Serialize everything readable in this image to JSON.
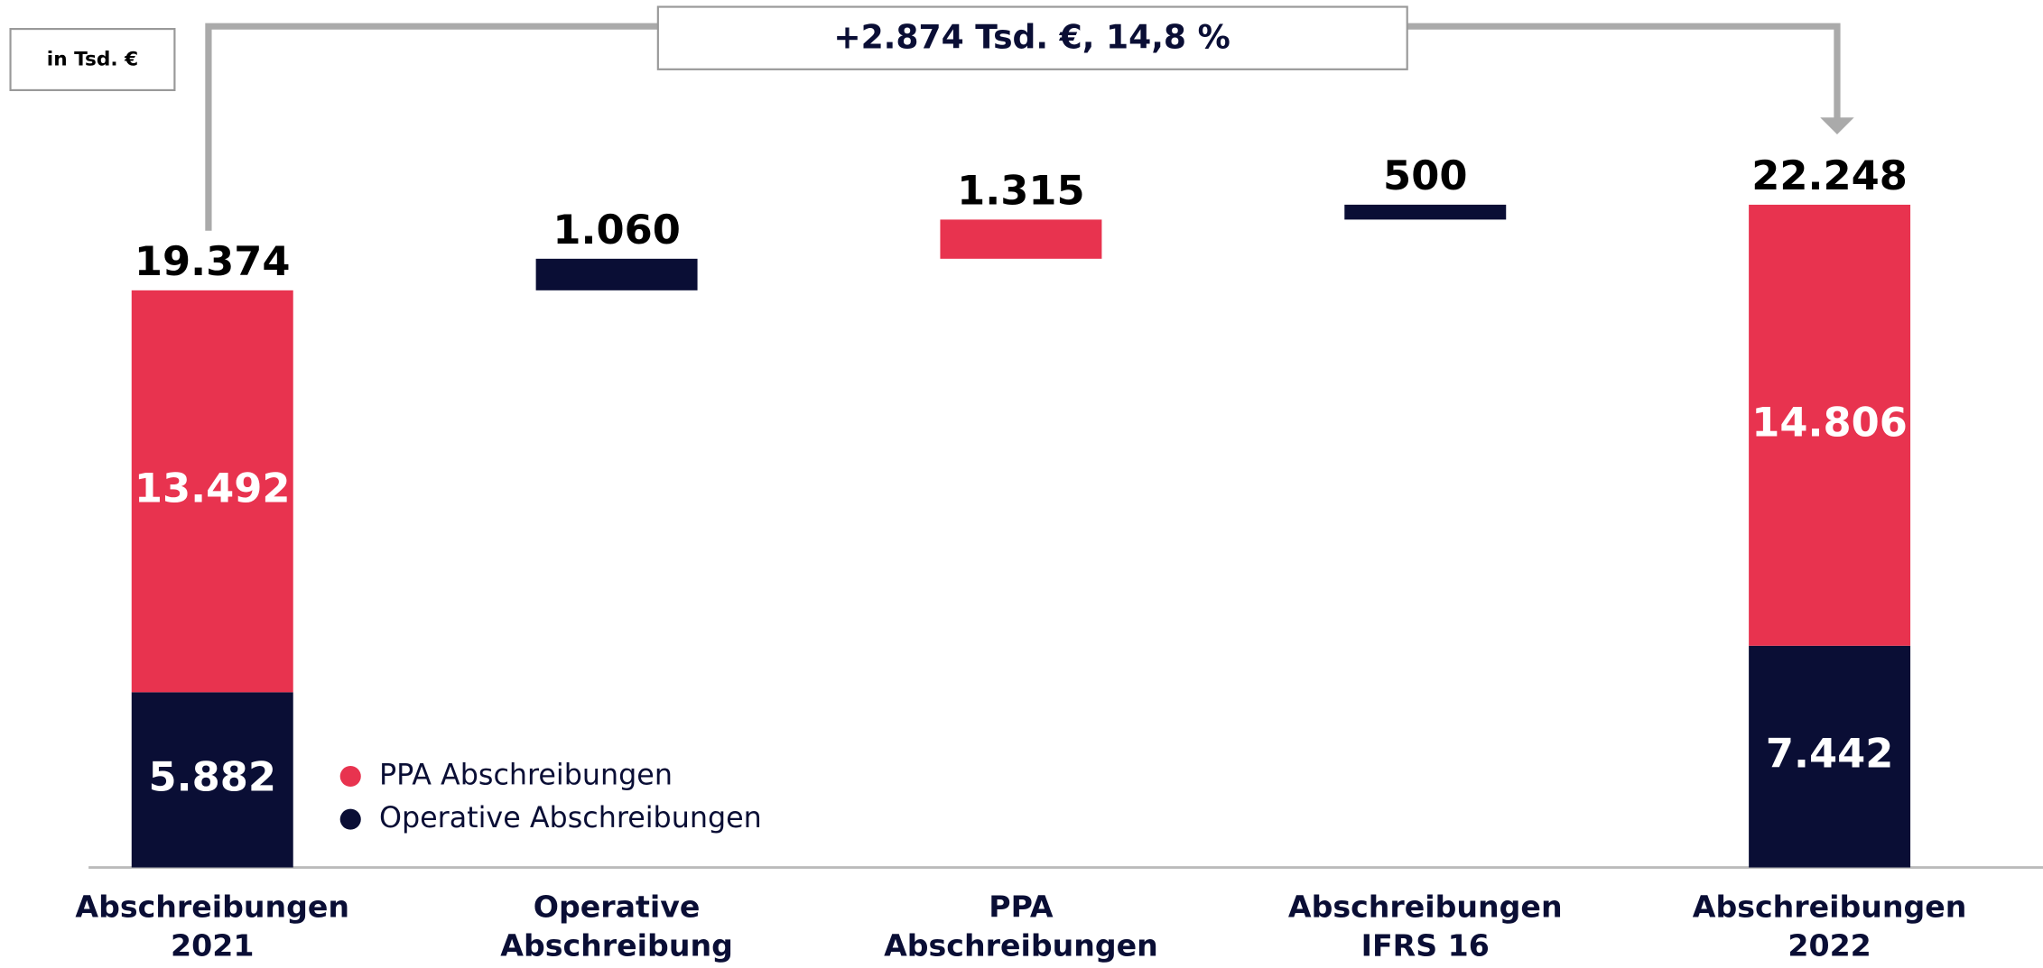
{
  "chart_data": {
    "type": "waterfall",
    "unit_label": "in Tsd. €",
    "annotation": "+2.874 Tsd. €, 14,8 %",
    "categories": [
      "Abschreibungen\n2021",
      "Operative\nAbschreibung",
      "PPA\nAbschreibungen",
      "Abschreibungen\nIFRS 16",
      "Abschreibungen\n2022"
    ],
    "totals": [
      19374,
      null,
      null,
      null,
      22248
    ],
    "total_labels": [
      "19.374",
      null,
      null,
      null,
      "22.248"
    ],
    "series": [
      {
        "name": "PPA Abschreibungen",
        "color": "#e8334f",
        "values": [
          13492,
          null,
          1315,
          null,
          14806
        ],
        "value_labels": [
          "13.492",
          null,
          "1.315",
          null,
          "14.806"
        ]
      },
      {
        "name": "Operative Abschreibungen",
        "color": "#0a0e35",
        "values": [
          5882,
          1060,
          null,
          500,
          7442
        ],
        "value_labels": [
          "5.882",
          "1.060",
          null,
          "500",
          "7.442"
        ]
      }
    ]
  }
}
